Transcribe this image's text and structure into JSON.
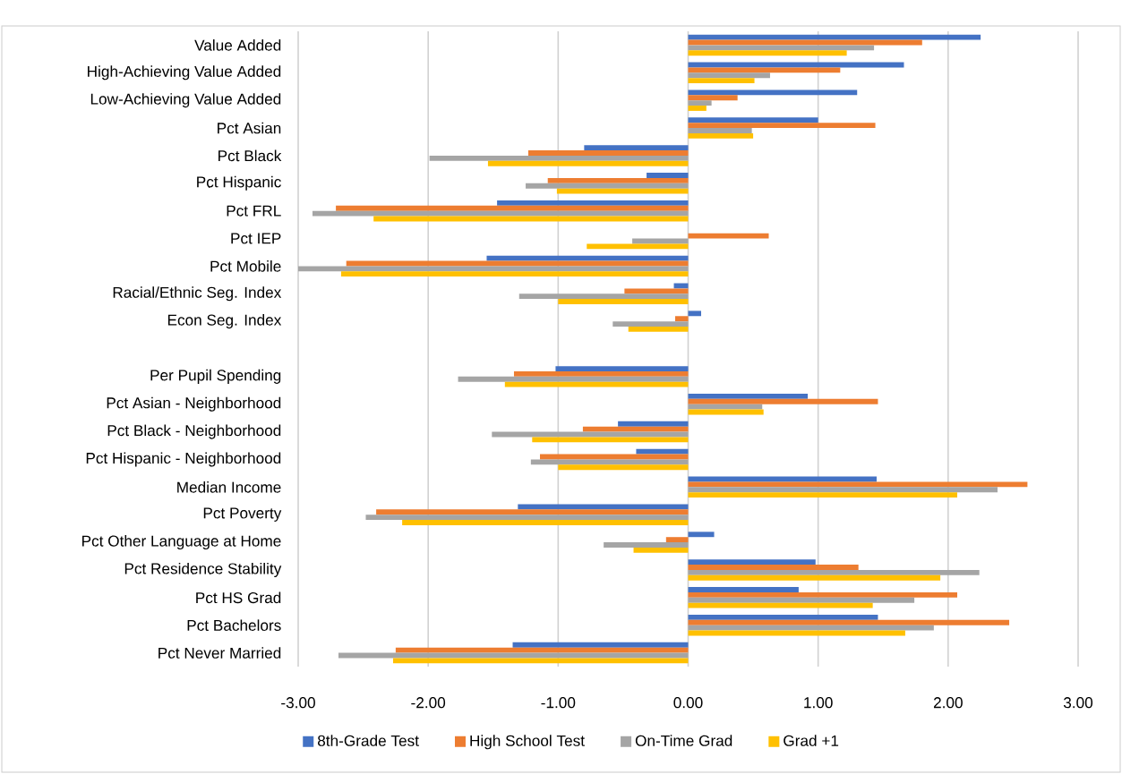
{
  "chart_data": {
    "type": "bar",
    "orientation": "horizontal",
    "categories": [
      "Value Added",
      "High-Achieving Value Added",
      "Low-Achieving Value Added",
      "Pct Asian",
      "Pct Black",
      "Pct Hispanic",
      "Pct FRL",
      "Pct IEP",
      "Pct Mobile",
      "Racial/Ethnic Seg. Index",
      "Econ Seg. Index",
      null,
      "Per Pupil Spending",
      "Pct Asian - Neighborhood",
      "Pct Black - Neighborhood",
      "Pct Hispanic - Neighborhood",
      "Median Income",
      "Pct Poverty",
      "Pct Other Language at Home",
      "Pct Residence Stability",
      "Pct HS Grad",
      "Pct Bachelors",
      "Pct Never Married"
    ],
    "series": [
      {
        "name": "8th-Grade Test",
        "color": "#4472c4",
        "values": [
          2.25,
          1.66,
          1.3,
          1.0,
          -0.8,
          -0.32,
          -1.47,
          null,
          -1.55,
          -0.11,
          0.1,
          null,
          -1.02,
          0.92,
          -0.54,
          -0.4,
          1.45,
          -1.31,
          0.2,
          0.98,
          0.85,
          1.46,
          -1.35
        ]
      },
      {
        "name": "High School Test",
        "color": "#ed7d31",
        "values": [
          1.8,
          1.17,
          0.38,
          1.44,
          -1.23,
          -1.08,
          -2.71,
          0.62,
          -2.63,
          -0.49,
          -0.1,
          null,
          -1.34,
          1.46,
          -0.81,
          -1.14,
          2.61,
          -2.4,
          -0.17,
          1.31,
          2.07,
          2.47,
          -2.25
        ]
      },
      {
        "name": "On-Time Grad",
        "color": "#a5a5a5",
        "values": [
          1.43,
          0.63,
          0.18,
          0.49,
          -1.99,
          -1.25,
          -2.89,
          -0.43,
          -3.0,
          -1.3,
          -0.58,
          null,
          -1.77,
          0.57,
          -1.51,
          -1.21,
          2.38,
          -2.48,
          -0.65,
          2.24,
          1.74,
          1.89,
          -2.69
        ]
      },
      {
        "name": "Grad +1",
        "color": "#ffc000",
        "values": [
          1.22,
          0.51,
          0.14,
          0.5,
          -1.54,
          -1.01,
          -2.42,
          -0.78,
          -2.67,
          -1.0,
          -0.46,
          null,
          -1.41,
          0.58,
          -1.2,
          -1.0,
          2.07,
          -2.2,
          -0.42,
          1.94,
          1.42,
          1.67,
          -2.27
        ]
      }
    ],
    "xlim": [
      -3,
      3
    ],
    "xticks": [
      {
        "value": -3,
        "label": "-3.00"
      },
      {
        "value": -2,
        "label": "-2.00"
      },
      {
        "value": -1,
        "label": "-1.00"
      },
      {
        "value": 0,
        "label": "0.00"
      },
      {
        "value": 1,
        "label": "1.00"
      },
      {
        "value": 2,
        "label": "2.00"
      },
      {
        "value": 3,
        "label": "3.00"
      }
    ],
    "grid": "x",
    "legend": "bottom"
  }
}
